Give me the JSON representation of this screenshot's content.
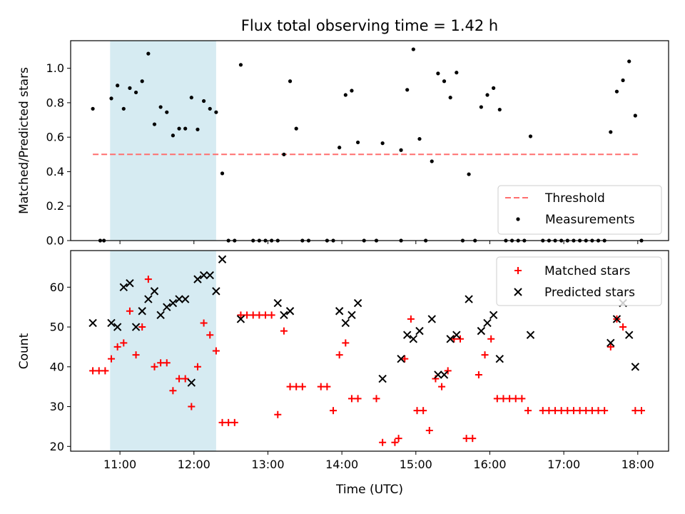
{
  "chart_data": [
    {
      "type": "scatter",
      "title": "Flux total observing time = 1.42 h",
      "xlabel": "",
      "ylabel": "Matched/Predicted stars",
      "xlim": [
        "10:20",
        "18:25"
      ],
      "ylim": [
        0.0,
        1.16
      ],
      "yticks": [
        0.0,
        0.2,
        0.4,
        0.6,
        0.8,
        1.0
      ],
      "shaded_span": [
        "10:52",
        "12:18"
      ],
      "shaded_color": "#add8e6",
      "legend_position": "lower right",
      "legend": [
        {
          "label": "Threshold",
          "style": "dashed-line",
          "color": "#ff6f6f"
        },
        {
          "label": "Measurements",
          "style": "dot",
          "color": "#000000"
        }
      ],
      "threshold": {
        "y": 0.5,
        "x_start": "10:38",
        "x_end": "18:00"
      },
      "series": [
        {
          "name": "Measurements",
          "color": "#000000",
          "points": [
            [
              "10:38",
              0.765
            ],
            [
              "10:44",
              0.0
            ],
            [
              "10:47",
              0.0
            ],
            [
              "10:53",
              0.825
            ],
            [
              "10:58",
              0.9
            ],
            [
              "11:03",
              0.765
            ],
            [
              "11:08",
              0.885
            ],
            [
              "11:13",
              0.86
            ],
            [
              "11:18",
              0.925
            ],
            [
              "11:23",
              1.085
            ],
            [
              "11:28",
              0.675
            ],
            [
              "11:33",
              0.775
            ],
            [
              "11:38",
              0.745
            ],
            [
              "11:43",
              0.61
            ],
            [
              "11:48",
              0.65
            ],
            [
              "11:53",
              0.65
            ],
            [
              "11:58",
              0.83
            ],
            [
              "12:03",
              0.645
            ],
            [
              "12:08",
              0.81
            ],
            [
              "12:13",
              0.765
            ],
            [
              "12:18",
              0.745
            ],
            [
              "12:23",
              0.39
            ],
            [
              "12:28",
              0.0
            ],
            [
              "12:33",
              0.0
            ],
            [
              "12:38",
              1.02
            ],
            [
              "12:48",
              0.0
            ],
            [
              "12:53",
              0.0
            ],
            [
              "12:58",
              0.0
            ],
            [
              "13:03",
              0.0
            ],
            [
              "13:08",
              0.0
            ],
            [
              "13:13",
              0.5
            ],
            [
              "13:18",
              0.925
            ],
            [
              "13:23",
              0.65
            ],
            [
              "13:28",
              0.0
            ],
            [
              "13:33",
              0.0
            ],
            [
              "13:48",
              0.0
            ],
            [
              "13:53",
              0.0
            ],
            [
              "13:58",
              0.54
            ],
            [
              "14:03",
              0.845
            ],
            [
              "14:08",
              0.87
            ],
            [
              "14:13",
              0.57
            ],
            [
              "14:18",
              0.0
            ],
            [
              "14:28",
              0.0
            ],
            [
              "14:33",
              0.565
            ],
            [
              "14:48",
              0.0
            ],
            [
              "14:48",
              0.525
            ],
            [
              "14:53",
              0.875
            ],
            [
              "14:58",
              1.11
            ],
            [
              "15:03",
              0.59
            ],
            [
              "15:08",
              0.0
            ],
            [
              "15:13",
              0.46
            ],
            [
              "15:18",
              0.97
            ],
            [
              "15:23",
              0.925
            ],
            [
              "15:28",
              0.83
            ],
            [
              "15:33",
              0.975
            ],
            [
              "15:38",
              0.0
            ],
            [
              "15:43",
              0.385
            ],
            [
              "15:48",
              0.0
            ],
            [
              "15:53",
              0.775
            ],
            [
              "15:58",
              0.845
            ],
            [
              "16:03",
              0.885
            ],
            [
              "16:08",
              0.76
            ],
            [
              "16:13",
              0.0
            ],
            [
              "16:18",
              0.0
            ],
            [
              "16:23",
              0.0
            ],
            [
              "16:28",
              0.0
            ],
            [
              "16:33",
              0.605
            ],
            [
              "16:43",
              0.0
            ],
            [
              "16:48",
              0.0
            ],
            [
              "16:53",
              0.0
            ],
            [
              "16:58",
              0.0
            ],
            [
              "17:03",
              0.0
            ],
            [
              "17:08",
              0.0
            ],
            [
              "17:13",
              0.0
            ],
            [
              "17:18",
              0.0
            ],
            [
              "17:23",
              0.0
            ],
            [
              "17:28",
              0.0
            ],
            [
              "17:33",
              0.0
            ],
            [
              "17:38",
              0.63
            ],
            [
              "17:43",
              0.865
            ],
            [
              "17:48",
              0.93
            ],
            [
              "17:53",
              1.04
            ],
            [
              "17:58",
              0.725
            ],
            [
              "18:03",
              0.0
            ]
          ]
        }
      ]
    },
    {
      "type": "scatter",
      "title": "",
      "xlabel": "Time (UTC)",
      "ylabel": "Count",
      "xlim": [
        "10:20",
        "18:25"
      ],
      "ylim": [
        18.8,
        69.2
      ],
      "yticks": [
        20,
        30,
        40,
        50,
        60
      ],
      "xticks": [
        "11:00",
        "12:00",
        "13:00",
        "14:00",
        "15:00",
        "16:00",
        "17:00",
        "18:00"
      ],
      "shaded_span": [
        "10:52",
        "12:18"
      ],
      "shaded_color": "#add8e6",
      "legend_position": "upper right",
      "legend": [
        {
          "label": "Matched stars",
          "marker": "plus",
          "color": "#ff0000"
        },
        {
          "label": "Predicted stars",
          "marker": "x",
          "color": "#000000"
        }
      ],
      "series": [
        {
          "name": "Matched stars",
          "marker": "plus",
          "color": "#ff0000",
          "points": [
            [
              "10:38",
              39
            ],
            [
              "10:43",
              39
            ],
            [
              "10:48",
              39
            ],
            [
              "10:53",
              42
            ],
            [
              "10:58",
              45
            ],
            [
              "11:03",
              46
            ],
            [
              "11:08",
              54
            ],
            [
              "11:13",
              43
            ],
            [
              "11:18",
              50
            ],
            [
              "11:23",
              62
            ],
            [
              "11:28",
              40
            ],
            [
              "11:33",
              41
            ],
            [
              "11:38",
              41
            ],
            [
              "11:43",
              34
            ],
            [
              "11:48",
              37
            ],
            [
              "11:53",
              37
            ],
            [
              "11:58",
              30
            ],
            [
              "12:03",
              40
            ],
            [
              "12:08",
              51
            ],
            [
              "12:13",
              48
            ],
            [
              "12:18",
              44
            ],
            [
              "12:23",
              26
            ],
            [
              "12:28",
              26
            ],
            [
              "12:33",
              26
            ],
            [
              "12:38",
              53
            ],
            [
              "12:43",
              53
            ],
            [
              "12:48",
              53
            ],
            [
              "12:53",
              53
            ],
            [
              "12:58",
              53
            ],
            [
              "13:03",
              53
            ],
            [
              "13:08",
              28
            ],
            [
              "13:13",
              49
            ],
            [
              "13:18",
              35
            ],
            [
              "13:23",
              35
            ],
            [
              "13:28",
              35
            ],
            [
              "13:43",
              35
            ],
            [
              "13:48",
              35
            ],
            [
              "13:53",
              29
            ],
            [
              "13:58",
              43
            ],
            [
              "14:03",
              46
            ],
            [
              "14:08",
              32
            ],
            [
              "14:13",
              32
            ],
            [
              "14:28",
              32
            ],
            [
              "14:33",
              21
            ],
            [
              "14:43",
              21
            ],
            [
              "14:46",
              22
            ],
            [
              "14:51",
              42
            ],
            [
              "14:56",
              52
            ],
            [
              "15:01",
              29
            ],
            [
              "15:06",
              29
            ],
            [
              "15:11",
              24
            ],
            [
              "15:16",
              37
            ],
            [
              "15:21",
              35
            ],
            [
              "15:26",
              39
            ],
            [
              "15:31",
              47
            ],
            [
              "15:36",
              47
            ],
            [
              "15:41",
              22
            ],
            [
              "15:46",
              22
            ],
            [
              "15:51",
              38
            ],
            [
              "15:56",
              43
            ],
            [
              "16:01",
              47
            ],
            [
              "16:06",
              32
            ],
            [
              "16:11",
              32
            ],
            [
              "16:16",
              32
            ],
            [
              "16:21",
              32
            ],
            [
              "16:26",
              32
            ],
            [
              "16:31",
              29
            ],
            [
              "16:43",
              29
            ],
            [
              "16:48",
              29
            ],
            [
              "16:53",
              29
            ],
            [
              "16:58",
              29
            ],
            [
              "17:03",
              29
            ],
            [
              "17:08",
              29
            ],
            [
              "17:13",
              29
            ],
            [
              "17:18",
              29
            ],
            [
              "17:23",
              29
            ],
            [
              "17:28",
              29
            ],
            [
              "17:33",
              29
            ],
            [
              "17:38",
              45
            ],
            [
              "17:43",
              52
            ],
            [
              "17:48",
              50
            ],
            [
              "17:58",
              29
            ],
            [
              "18:03",
              29
            ]
          ]
        },
        {
          "name": "Predicted stars",
          "marker": "x",
          "color": "#000000",
          "points": [
            [
              "10:38",
              51
            ],
            [
              "10:53",
              51
            ],
            [
              "10:58",
              50
            ],
            [
              "11:03",
              60
            ],
            [
              "11:08",
              61
            ],
            [
              "11:13",
              50
            ],
            [
              "11:18",
              54
            ],
            [
              "11:23",
              57
            ],
            [
              "11:28",
              59
            ],
            [
              "11:33",
              53
            ],
            [
              "11:38",
              55
            ],
            [
              "11:43",
              56
            ],
            [
              "11:48",
              57
            ],
            [
              "11:53",
              57
            ],
            [
              "11:58",
              36
            ],
            [
              "12:03",
              62
            ],
            [
              "12:08",
              63
            ],
            [
              "12:13",
              63
            ],
            [
              "12:18",
              59
            ],
            [
              "12:23",
              67
            ],
            [
              "12:38",
              52
            ],
            [
              "13:08",
              56
            ],
            [
              "13:13",
              53
            ],
            [
              "13:18",
              54
            ],
            [
              "13:58",
              54
            ],
            [
              "14:03",
              51
            ],
            [
              "14:08",
              53
            ],
            [
              "14:13",
              56
            ],
            [
              "14:33",
              37
            ],
            [
              "14:48",
              42
            ],
            [
              "14:53",
              48
            ],
            [
              "14:58",
              47
            ],
            [
              "15:03",
              49
            ],
            [
              "15:13",
              52
            ],
            [
              "15:18",
              38
            ],
            [
              "15:23",
              38
            ],
            [
              "15:28",
              47
            ],
            [
              "15:33",
              48
            ],
            [
              "15:43",
              57
            ],
            [
              "15:53",
              49
            ],
            [
              "15:58",
              51
            ],
            [
              "16:03",
              53
            ],
            [
              "16:08",
              42
            ],
            [
              "16:33",
              48
            ],
            [
              "17:38",
              46
            ],
            [
              "17:43",
              52
            ],
            [
              "17:48",
              56
            ],
            [
              "17:53",
              48
            ],
            [
              "17:58",
              40
            ]
          ]
        }
      ]
    }
  ]
}
